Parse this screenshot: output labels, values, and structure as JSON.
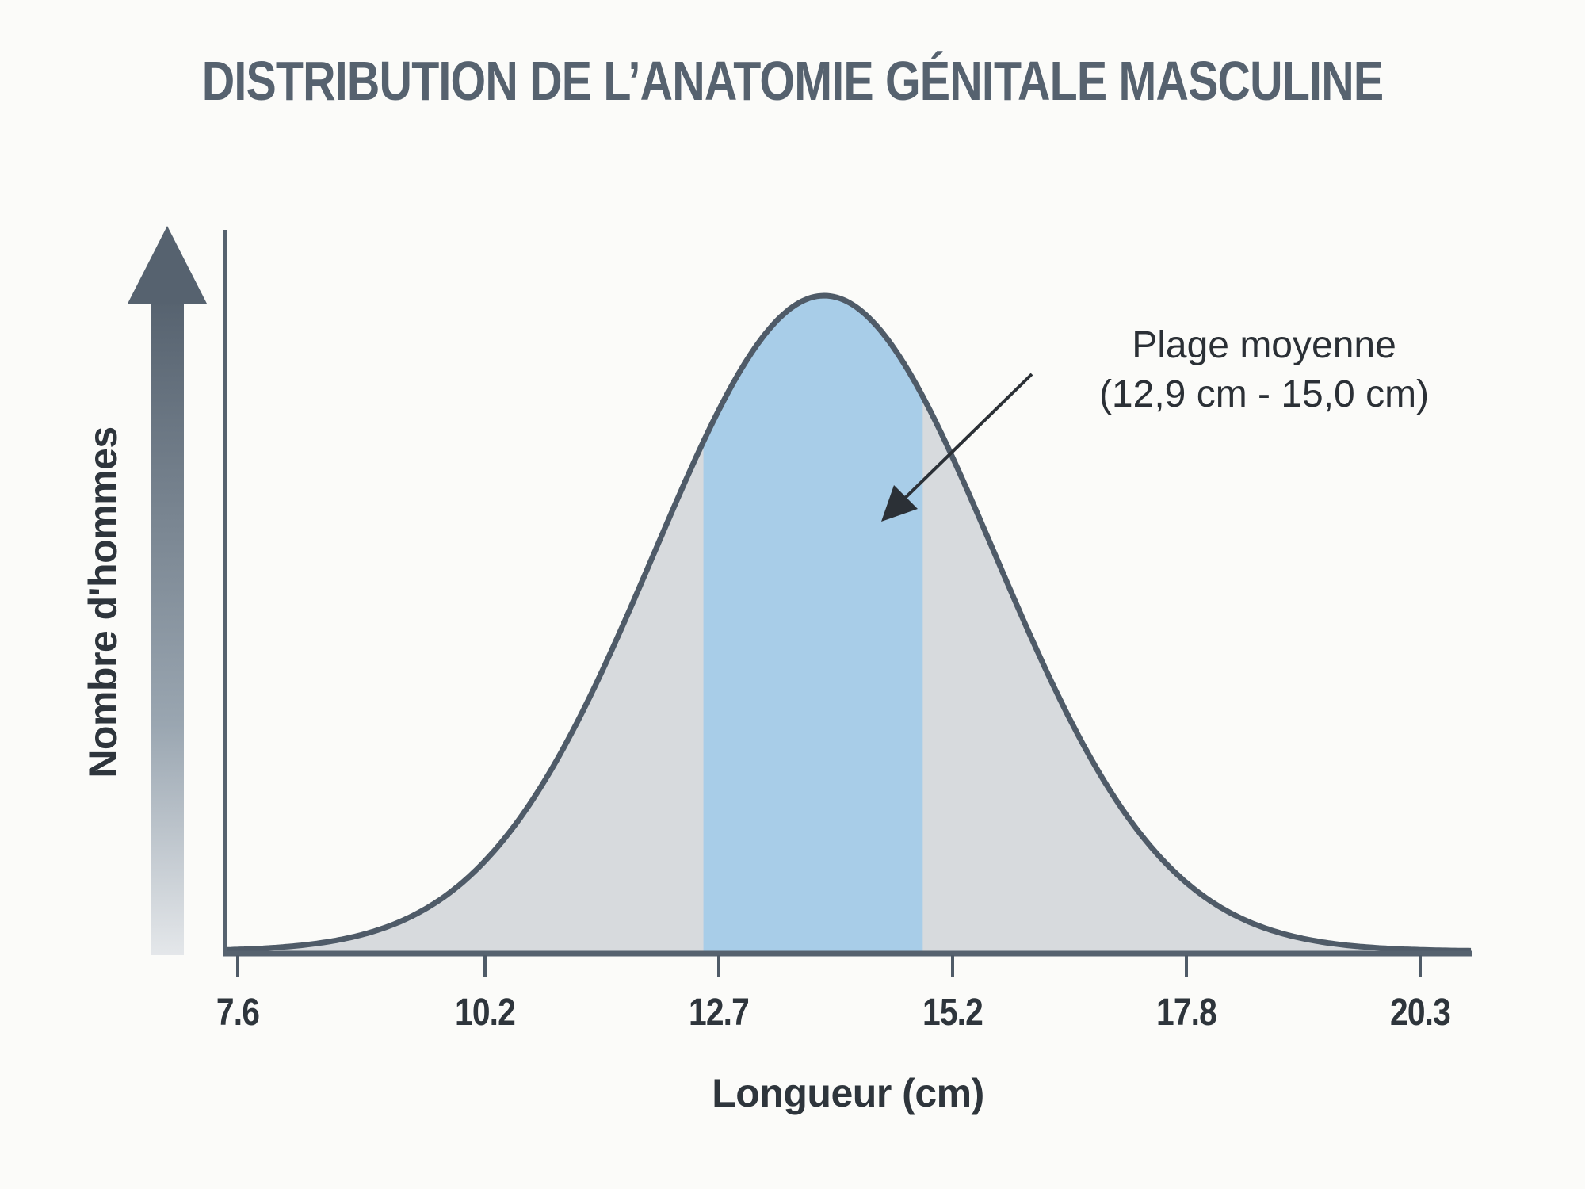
{
  "chart_data": {
    "type": "area",
    "title": "DISTRIBUTION DE L’ANATOMIE GÉNITALE MASCULINE",
    "xlabel": "Longueur (cm)",
    "ylabel": "Nombre d'hommes",
    "x_ticks": [
      "7.6",
      "10.2",
      "12.7",
      "15.2",
      "17.8",
      "20.3"
    ],
    "xlim": [
      7.6,
      20.3
    ],
    "distribution": "normal",
    "peak_x": 13.9,
    "highlight_range": [
      12.9,
      15.0
    ],
    "annotation": {
      "line1": "Plage moyenne",
      "line2": "(12,9 cm - 15,0 cm)"
    },
    "grid": false,
    "y_tick_labels": false
  },
  "colors": {
    "curve": "#4f5b68",
    "fill": "#d7dadd",
    "highlight": "#a8cde8",
    "axis": "#56626f",
    "text": "#2e353c",
    "background": "#fbfbf9"
  }
}
